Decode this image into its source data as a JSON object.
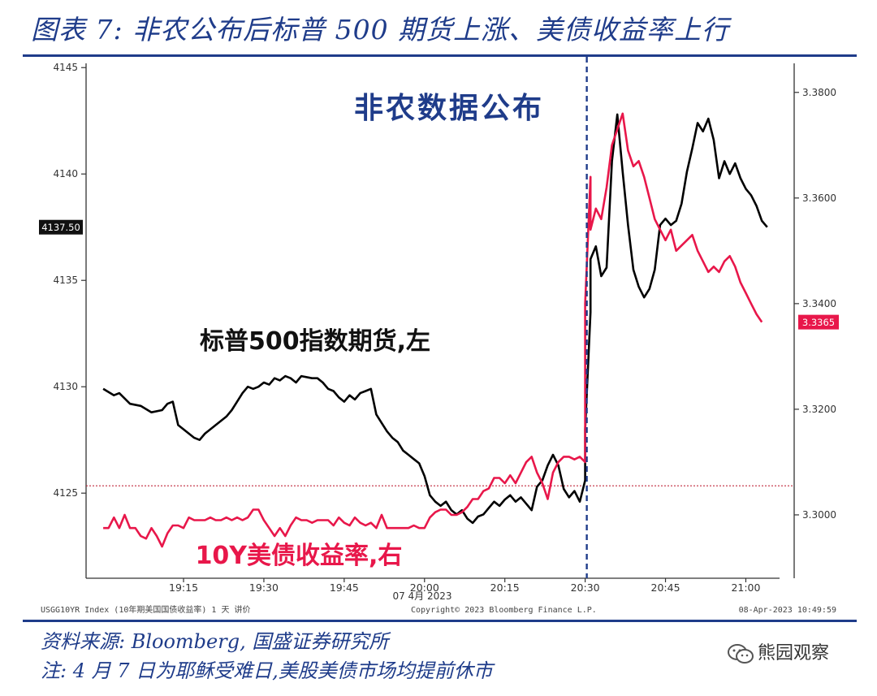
{
  "title": "图表 7:  非农公布后标普 500 期货上涨、美债收益率上行",
  "footer": {
    "source": "资料来源:  Bloomberg, 国盛证券研究所",
    "note": "注:  4 月 7 日为耶稣受难日,美股美债市场均提前休市"
  },
  "watermark": "熊园观察",
  "bloomberg_footer": {
    "left": "USGG10YR Index (10年期美国国债收益率) 1 天  讲价",
    "center": "Copyright© 2023 Bloomberg Finance L.P.",
    "right": "08-Apr-2023  10:49:59"
  },
  "colors": {
    "spx": "#000000",
    "yield": "#e8174a",
    "event_line": "#1f3c8a",
    "title": "#1f3c8a",
    "frame": "#1f3c8a"
  },
  "chart_data": {
    "type": "line",
    "annotations": {
      "event": "非农数据公布",
      "spx_label": "标普500指数期货,左",
      "yield_label": "10Y美债收益率,右"
    },
    "x_ticks": [
      "19:15",
      "19:30",
      "19:45",
      "20:00",
      "20:15",
      "20:30",
      "20:45",
      "21:00"
    ],
    "x_date_label": "07 4月 2023",
    "event_time": "20:30",
    "y_left": {
      "range": [
        4121,
        4145.2
      ],
      "ticks": [
        "4125",
        "4130",
        "4135",
        "4140",
        "4145"
      ],
      "current": "4137.50"
    },
    "y_right": {
      "range": [
        3.288,
        3.3855
      ],
      "ticks": [
        "3.3000",
        "3.3200",
        "3.3400",
        "3.3600",
        "3.3800"
      ],
      "current": "3.3365"
    },
    "reference_line_right": 3.3055,
    "series": [
      {
        "name": "标普500指数期货,左",
        "axis": "left",
        "color": "#000000",
        "points": [
          [
            "19:00",
            4129.9
          ],
          [
            "19:02",
            4129.6
          ],
          [
            "19:03",
            4129.7
          ],
          [
            "19:05",
            4129.2
          ],
          [
            "19:07",
            4129.1
          ],
          [
            "19:09",
            4128.8
          ],
          [
            "19:11",
            4128.9
          ],
          [
            "19:12",
            4129.2
          ],
          [
            "19:13",
            4129.3
          ],
          [
            "19:14",
            4128.2
          ],
          [
            "19:15",
            4128.0
          ],
          [
            "19:16",
            4127.8
          ],
          [
            "19:17",
            4127.6
          ],
          [
            "19:18",
            4127.5
          ],
          [
            "19:19",
            4127.8
          ],
          [
            "19:21",
            4128.2
          ],
          [
            "19:23",
            4128.6
          ],
          [
            "19:24",
            4128.9
          ],
          [
            "19:25",
            4129.3
          ],
          [
            "19:26",
            4129.7
          ],
          [
            "19:27",
            4130.0
          ],
          [
            "19:28",
            4129.9
          ],
          [
            "19:29",
            4130.0
          ],
          [
            "19:30",
            4130.2
          ],
          [
            "19:31",
            4130.1
          ],
          [
            "19:32",
            4130.4
          ],
          [
            "19:33",
            4130.3
          ],
          [
            "19:34",
            4130.5
          ],
          [
            "19:35",
            4130.4
          ],
          [
            "19:36",
            4130.2
          ],
          [
            "19:37",
            4130.5
          ],
          [
            "19:39",
            4130.4
          ],
          [
            "19:40",
            4130.4
          ],
          [
            "19:41",
            4130.2
          ],
          [
            "19:42",
            4129.9
          ],
          [
            "19:43",
            4129.8
          ],
          [
            "19:44",
            4129.5
          ],
          [
            "19:45",
            4129.3
          ],
          [
            "19:46",
            4129.6
          ],
          [
            "19:47",
            4129.4
          ],
          [
            "19:48",
            4129.7
          ],
          [
            "19:49",
            4129.8
          ],
          [
            "19:50",
            4129.9
          ],
          [
            "19:51",
            4128.7
          ],
          [
            "19:52",
            4128.3
          ],
          [
            "19:53",
            4127.9
          ],
          [
            "19:54",
            4127.6
          ],
          [
            "19:55",
            4127.4
          ],
          [
            "19:56",
            4127.0
          ],
          [
            "19:57",
            4126.8
          ],
          [
            "19:58",
            4126.6
          ],
          [
            "19:59",
            4126.4
          ],
          [
            "20:00",
            4125.8
          ],
          [
            "20:01",
            4124.9
          ],
          [
            "20:02",
            4124.6
          ],
          [
            "20:03",
            4124.4
          ],
          [
            "20:04",
            4124.6
          ],
          [
            "20:05",
            4124.2
          ],
          [
            "20:06",
            4124.0
          ],
          [
            "20:07",
            4124.2
          ],
          [
            "20:08",
            4123.8
          ],
          [
            "20:09",
            4123.6
          ],
          [
            "20:10",
            4123.9
          ],
          [
            "20:11",
            4124.0
          ],
          [
            "20:12",
            4124.3
          ],
          [
            "20:13",
            4124.6
          ],
          [
            "20:14",
            4124.4
          ],
          [
            "20:15",
            4124.7
          ],
          [
            "20:16",
            4124.9
          ],
          [
            "20:17",
            4124.6
          ],
          [
            "20:18",
            4124.8
          ],
          [
            "20:19",
            4124.5
          ],
          [
            "20:20",
            4124.2
          ],
          [
            "20:21",
            4125.3
          ],
          [
            "20:22",
            4125.6
          ],
          [
            "20:23",
            4126.3
          ],
          [
            "20:24",
            4126.8
          ],
          [
            "20:25",
            4126.3
          ],
          [
            "20:26",
            4125.2
          ],
          [
            "20:27",
            4124.8
          ],
          [
            "20:28",
            4125.1
          ],
          [
            "20:29",
            4124.6
          ],
          [
            "20:30",
            4125.6
          ],
          [
            "20:30",
            4128.0
          ],
          [
            "20:31",
            4133.5
          ],
          [
            "20:31",
            4136.0
          ],
          [
            "20:32",
            4136.6
          ],
          [
            "20:33",
            4135.2
          ],
          [
            "20:34",
            4135.6
          ],
          [
            "20:35",
            4140.6
          ],
          [
            "20:36",
            4142.8
          ],
          [
            "20:37",
            4140.1
          ],
          [
            "20:38",
            4137.6
          ],
          [
            "20:39",
            4135.5
          ],
          [
            "20:40",
            4134.7
          ],
          [
            "20:41",
            4134.2
          ],
          [
            "20:42",
            4134.6
          ],
          [
            "20:43",
            4135.5
          ],
          [
            "20:44",
            4137.6
          ],
          [
            "20:45",
            4137.9
          ],
          [
            "20:46",
            4137.6
          ],
          [
            "20:47",
            4137.8
          ],
          [
            "20:48",
            4138.6
          ],
          [
            "20:49",
            4140.1
          ],
          [
            "20:50",
            4141.2
          ],
          [
            "20:51",
            4142.4
          ],
          [
            "20:52",
            4142.0
          ],
          [
            "20:53",
            4142.6
          ],
          [
            "20:54",
            4141.6
          ],
          [
            "20:55",
            4139.8
          ],
          [
            "20:56",
            4140.6
          ],
          [
            "20:57",
            4140.0
          ],
          [
            "20:58",
            4140.5
          ],
          [
            "20:59",
            4139.8
          ],
          [
            "21:00",
            4139.3
          ],
          [
            "21:01",
            4139.0
          ],
          [
            "21:02",
            4138.5
          ],
          [
            "21:03",
            4137.8
          ],
          [
            "21:04",
            4137.5
          ]
        ]
      },
      {
        "name": "10Y美债收益率,右",
        "axis": "right",
        "color": "#e8174a",
        "points": [
          [
            "19:00",
            3.2975
          ],
          [
            "19:01",
            3.2975
          ],
          [
            "19:02",
            3.2995
          ],
          [
            "19:03",
            3.2975
          ],
          [
            "19:04",
            3.3
          ],
          [
            "19:05",
            3.2975
          ],
          [
            "19:06",
            3.2975
          ],
          [
            "19:07",
            3.296
          ],
          [
            "19:08",
            3.2955
          ],
          [
            "19:09",
            3.2975
          ],
          [
            "19:10",
            3.296
          ],
          [
            "19:11",
            3.294
          ],
          [
            "19:12",
            3.2965
          ],
          [
            "19:13",
            3.298
          ],
          [
            "19:14",
            3.298
          ],
          [
            "19:15",
            3.2975
          ],
          [
            "19:16",
            3.2995
          ],
          [
            "19:17",
            3.299
          ],
          [
            "19:18",
            3.299
          ],
          [
            "19:19",
            3.299
          ],
          [
            "19:20",
            3.2995
          ],
          [
            "19:21",
            3.299
          ],
          [
            "19:22",
            3.299
          ],
          [
            "19:23",
            3.2995
          ],
          [
            "19:24",
            3.299
          ],
          [
            "19:25",
            3.2995
          ],
          [
            "19:26",
            3.299
          ],
          [
            "19:27",
            3.2995
          ],
          [
            "19:28",
            3.301
          ],
          [
            "19:29",
            3.301
          ],
          [
            "19:30",
            3.299
          ],
          [
            "19:31",
            3.2975
          ],
          [
            "19:32",
            3.296
          ],
          [
            "19:33",
            3.2975
          ],
          [
            "19:34",
            3.296
          ],
          [
            "19:35",
            3.298
          ],
          [
            "19:36",
            3.2995
          ],
          [
            "19:37",
            3.299
          ],
          [
            "19:38",
            3.299
          ],
          [
            "19:39",
            3.2985
          ],
          [
            "19:40",
            3.299
          ],
          [
            "19:41",
            3.299
          ],
          [
            "19:42",
            3.299
          ],
          [
            "19:43",
            3.298
          ],
          [
            "19:44",
            3.2995
          ],
          [
            "19:45",
            3.2985
          ],
          [
            "19:46",
            3.298
          ],
          [
            "19:47",
            3.2995
          ],
          [
            "19:48",
            3.2985
          ],
          [
            "19:49",
            3.298
          ],
          [
            "19:50",
            3.2985
          ],
          [
            "19:51",
            3.2975
          ],
          [
            "19:52",
            3.3
          ],
          [
            "19:53",
            3.2975
          ],
          [
            "19:54",
            3.2975
          ],
          [
            "19:55",
            3.2975
          ],
          [
            "19:56",
            3.2975
          ],
          [
            "19:57",
            3.2975
          ],
          [
            "19:58",
            3.298
          ],
          [
            "19:59",
            3.2975
          ],
          [
            "20:00",
            3.2975
          ],
          [
            "20:01",
            3.2995
          ],
          [
            "20:02",
            3.3005
          ],
          [
            "20:03",
            3.301
          ],
          [
            "20:04",
            3.301
          ],
          [
            "20:05",
            3.3
          ],
          [
            "20:06",
            3.3
          ],
          [
            "20:07",
            3.3005
          ],
          [
            "20:08",
            3.3015
          ],
          [
            "20:09",
            3.303
          ],
          [
            "20:10",
            3.303
          ],
          [
            "20:11",
            3.3045
          ],
          [
            "20:12",
            3.305
          ],
          [
            "20:13",
            3.307
          ],
          [
            "20:14",
            3.307
          ],
          [
            "20:15",
            3.306
          ],
          [
            "20:16",
            3.3075
          ],
          [
            "20:17",
            3.306
          ],
          [
            "20:18",
            3.308
          ],
          [
            "20:19",
            3.31
          ],
          [
            "20:20",
            3.311
          ],
          [
            "20:21",
            3.308
          ],
          [
            "20:22",
            3.306
          ],
          [
            "20:23",
            3.303
          ],
          [
            "20:24",
            3.308
          ],
          [
            "20:25",
            3.31
          ],
          [
            "20:26",
            3.311
          ],
          [
            "20:27",
            3.311
          ],
          [
            "20:28",
            3.3105
          ],
          [
            "20:29",
            3.311
          ],
          [
            "20:30",
            3.31
          ],
          [
            "20:30",
            3.34
          ],
          [
            "20:31",
            3.364
          ],
          [
            "20:31",
            3.354
          ],
          [
            "20:32",
            3.358
          ],
          [
            "20:33",
            3.356
          ],
          [
            "20:34",
            3.362
          ],
          [
            "20:35",
            3.37
          ],
          [
            "20:36",
            3.373
          ],
          [
            "20:37",
            3.376
          ],
          [
            "20:38",
            3.369
          ],
          [
            "20:39",
            3.366
          ],
          [
            "20:40",
            3.367
          ],
          [
            "20:41",
            3.364
          ],
          [
            "20:42",
            3.36
          ],
          [
            "20:43",
            3.356
          ],
          [
            "20:44",
            3.354
          ],
          [
            "20:45",
            3.352
          ],
          [
            "20:46",
            3.354
          ],
          [
            "20:47",
            3.35
          ],
          [
            "20:48",
            3.351
          ],
          [
            "20:49",
            3.352
          ],
          [
            "20:50",
            3.353
          ],
          [
            "20:51",
            3.35
          ],
          [
            "20:52",
            3.348
          ],
          [
            "20:53",
            3.346
          ],
          [
            "20:54",
            3.347
          ],
          [
            "20:55",
            3.346
          ],
          [
            "20:56",
            3.348
          ],
          [
            "20:57",
            3.349
          ],
          [
            "20:58",
            3.347
          ],
          [
            "20:59",
            3.344
          ],
          [
            "21:00",
            3.342
          ],
          [
            "21:01",
            3.34
          ],
          [
            "21:02",
            3.338
          ],
          [
            "21:03",
            3.3365
          ]
        ]
      }
    ]
  }
}
